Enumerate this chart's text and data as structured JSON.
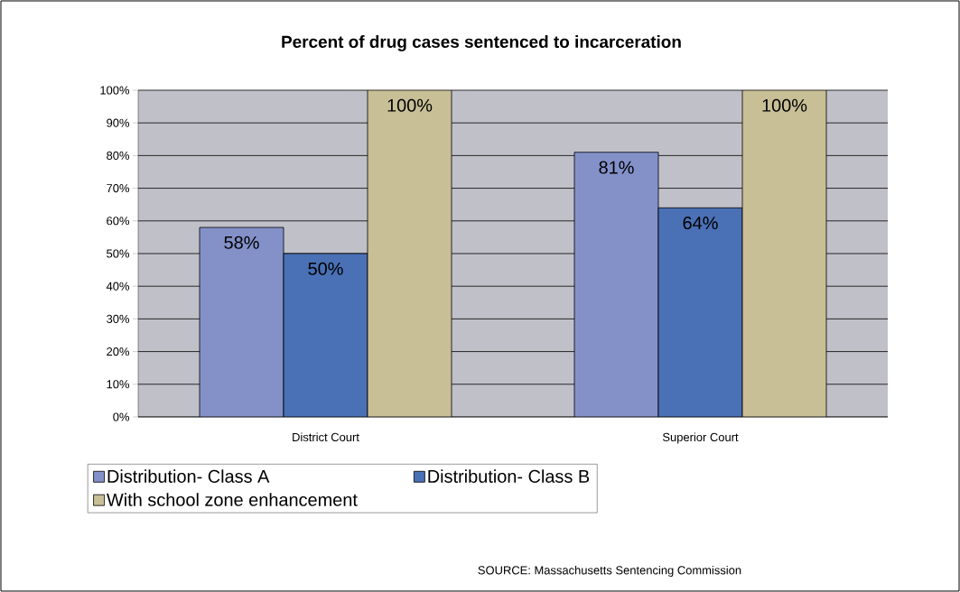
{
  "chart_data": {
    "type": "bar",
    "title": "Percent of drug cases sentenced to incarceration",
    "categories": [
      "District Court",
      "Superior Court"
    ],
    "series": [
      {
        "name": "Distribution- Class A",
        "color": "#8491c9",
        "values": [
          58,
          81
        ],
        "value_labels": [
          "58%",
          "81%"
        ]
      },
      {
        "name": "Distribution- Class B",
        "color": "#4a70b6",
        "values": [
          50,
          64
        ],
        "value_labels": [
          "50%",
          "64%"
        ]
      },
      {
        "name": "With school zone enhancement",
        "color": "#c8bf97",
        "values": [
          100,
          100
        ],
        "value_labels": [
          "100%",
          "100%"
        ]
      }
    ],
    "ylim": [
      0,
      100
    ],
    "yticks": [
      {
        "value": 0,
        "label": "0%"
      },
      {
        "value": 10,
        "label": "10%"
      },
      {
        "value": 20,
        "label": "20%"
      },
      {
        "value": 30,
        "label": "30%"
      },
      {
        "value": 40,
        "label": "40%"
      },
      {
        "value": 50,
        "label": "50%"
      },
      {
        "value": 60,
        "label": "60%"
      },
      {
        "value": 70,
        "label": "70%"
      },
      {
        "value": 80,
        "label": "80%"
      },
      {
        "value": 90,
        "label": "90%"
      },
      {
        "value": 100,
        "label": "100%"
      }
    ],
    "grid": "y",
    "legend": "bottom",
    "annotations": [
      "SOURCE: Massachusetts Sentencing Commission"
    ]
  }
}
